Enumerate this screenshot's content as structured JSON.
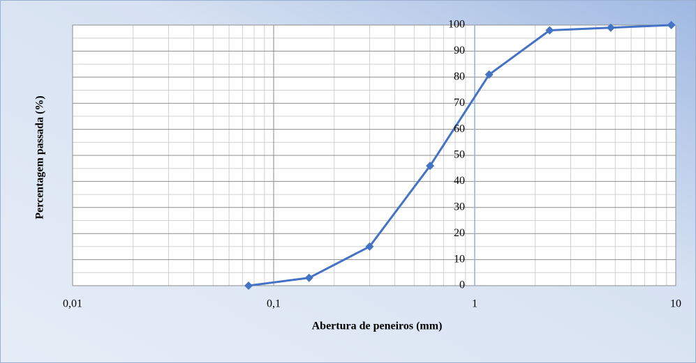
{
  "chart_data": {
    "type": "line",
    "x_label": "Abertura de peneiros (mm)",
    "y_label": "Percentagem passada (%)",
    "x": [
      0.075,
      0.15,
      0.3,
      0.6,
      1.18,
      2.36,
      4.75,
      9.5
    ],
    "series": [
      {
        "color": "#4472c4",
        "values": [
          0,
          3,
          15,
          46,
          81,
          98,
          99,
          100
        ]
      }
    ],
    "xlim": [
      0.01,
      10
    ],
    "ylim": [
      0,
      100
    ],
    "xticks": [
      {
        "value": 0.01,
        "label": "0,01"
      },
      {
        "value": 0.1,
        "label": "0,1"
      },
      1,
      10
    ],
    "yticks": [
      0,
      10,
      20,
      30,
      40,
      50,
      60,
      70,
      80,
      90,
      100
    ],
    "x_log": true,
    "grid": true,
    "minor_grid": true,
    "y_axis_crosses_x": 1
  }
}
